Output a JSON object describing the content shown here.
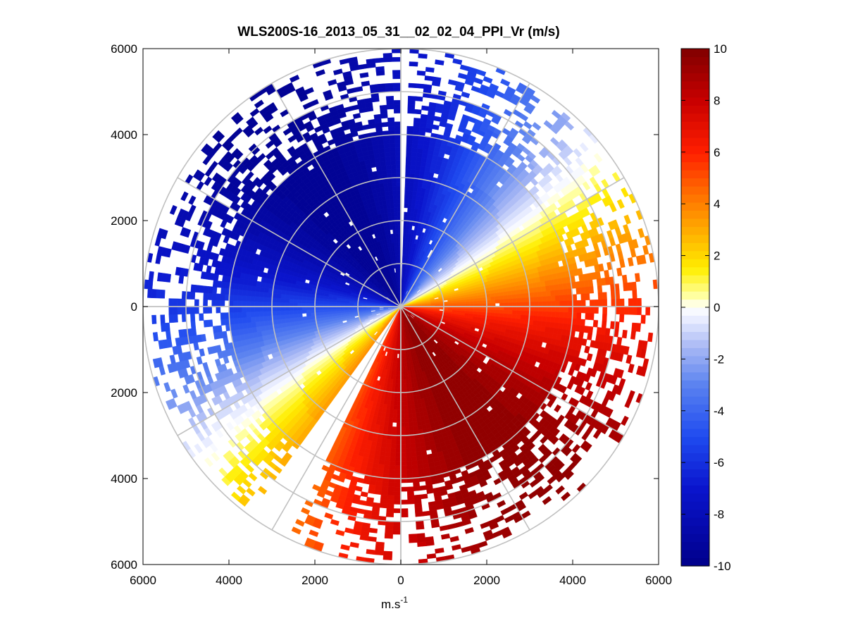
{
  "chart_data": {
    "type": "heatmap",
    "subtype": "polar PPI scan",
    "title": "WLS200S-16_2013_05_31__02_02_04_PPI_Vr (m/s)",
    "xlabel": "m.s",
    "xlabel_superscript": "-1",
    "ylabel": "",
    "xlim": [
      -6000,
      6000
    ],
    "ylim": [
      -6000,
      6000
    ],
    "x_ticks": [
      {
        "value": -6000,
        "label": "6000"
      },
      {
        "value": -4000,
        "label": "4000"
      },
      {
        "value": -2000,
        "label": "2000"
      },
      {
        "value": 0,
        "label": "0"
      },
      {
        "value": 2000,
        "label": "2000"
      },
      {
        "value": 4000,
        "label": "4000"
      },
      {
        "value": 6000,
        "label": "6000"
      }
    ],
    "y_ticks": [
      {
        "value": 6000,
        "label": "6000"
      },
      {
        "value": 4000,
        "label": "4000"
      },
      {
        "value": 2000,
        "label": "2000"
      },
      {
        "value": 0,
        "label": "0"
      },
      {
        "value": -2000,
        "label": "2000"
      },
      {
        "value": -4000,
        "label": "4000"
      },
      {
        "value": -6000,
        "label": "6000"
      }
    ],
    "range_rings_m": [
      1000,
      2000,
      3000,
      4000,
      5000,
      6000
    ],
    "spoke_angles_deg": [
      0,
      30,
      60,
      90,
      120,
      150,
      180,
      210,
      240,
      270,
      300,
      330
    ],
    "grid": true,
    "max_range_m": 6000,
    "gate_spacing_m": 100,
    "azimuth_step_deg": 2,
    "blind_sectors_deg": [
      [
        0,
        2
      ],
      [
        207,
        216
      ]
    ],
    "field": {
      "quantity": "radial velocity Vr",
      "units": "m/s",
      "zero_line_azimuth_deg": 58,
      "model": "Vr = 9.6 * sin(azimuth - 58 deg), positive = receding (red), negative = approaching (blue)",
      "shear_rotation_deg_per_km": -1.5,
      "clean_range_m": 4000,
      "sparse_range_m": 6000
    },
    "colorbar": {
      "min": -10,
      "max": 10,
      "levels": 64,
      "ticks": [
        10,
        8,
        6,
        4,
        2,
        0,
        -2,
        -4,
        -6,
        -8,
        -10
      ],
      "tick_labels": [
        "10",
        "8",
        "6",
        "4",
        "2",
        "0",
        "-2",
        "-4",
        "-6",
        "-8",
        "-10"
      ],
      "colormap_stops": [
        {
          "value": -10,
          "color": "#00008b"
        },
        {
          "value": -7,
          "color": "#0a14cd"
        },
        {
          "value": -5,
          "color": "#1f4bf0"
        },
        {
          "value": -3,
          "color": "#5a82f0"
        },
        {
          "value": -1.5,
          "color": "#aab9f5"
        },
        {
          "value": -0.5,
          "color": "#e6ebff"
        },
        {
          "value": 0,
          "color": "#ffffff"
        },
        {
          "value": 0.5,
          "color": "#ffff9a"
        },
        {
          "value": 1.5,
          "color": "#ffee00"
        },
        {
          "value": 3,
          "color": "#ffab00"
        },
        {
          "value": 4.5,
          "color": "#ff6a00"
        },
        {
          "value": 6,
          "color": "#ff1e00"
        },
        {
          "value": 8,
          "color": "#c80000"
        },
        {
          "value": 10,
          "color": "#800000"
        }
      ]
    }
  }
}
